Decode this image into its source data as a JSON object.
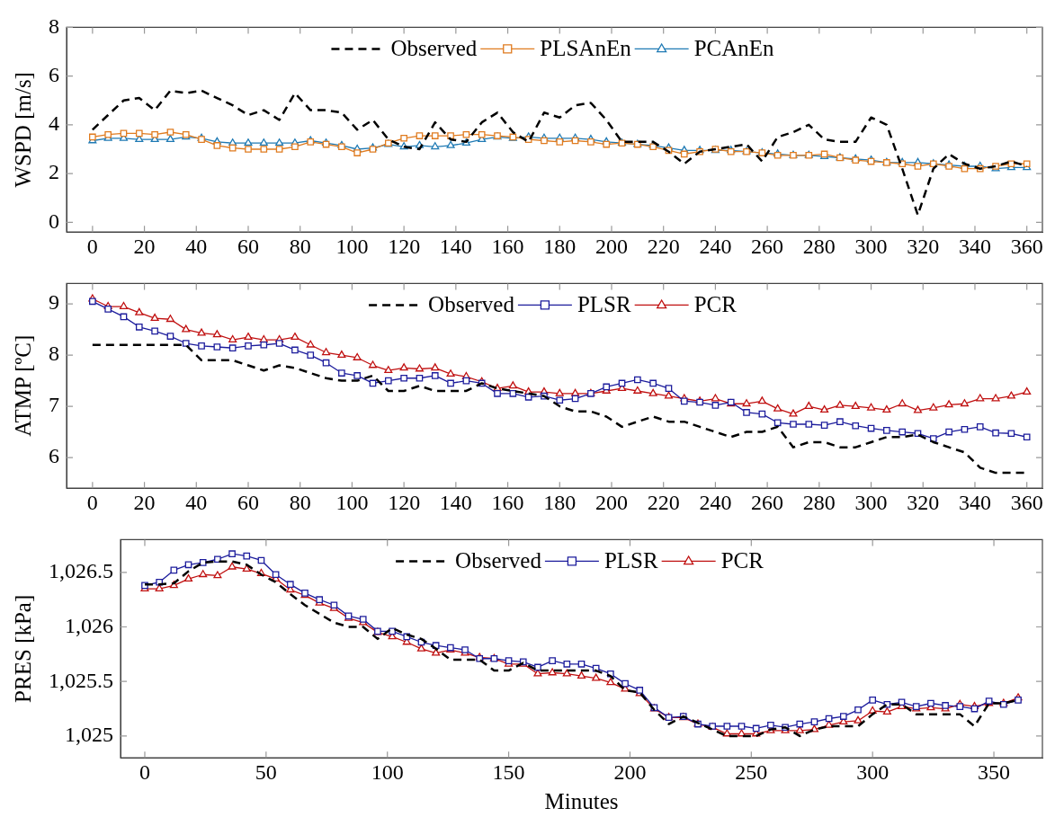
{
  "chart_data": [
    {
      "type": "line",
      "ylabel": "WSPD [m/s]",
      "xlim": [
        -10,
        366
      ],
      "ylim": [
        -0.4,
        8
      ],
      "xticks": [
        0,
        20,
        40,
        60,
        80,
        100,
        120,
        140,
        160,
        180,
        200,
        220,
        240,
        260,
        280,
        300,
        320,
        340,
        360
      ],
      "yticks": [
        0,
        2,
        4,
        6,
        8
      ],
      "legend": "top",
      "x": [
        0,
        6,
        12,
        18,
        24,
        30,
        36,
        42,
        48,
        54,
        60,
        66,
        72,
        78,
        84,
        90,
        96,
        102,
        108,
        114,
        120,
        126,
        132,
        138,
        144,
        150,
        156,
        162,
        168,
        174,
        180,
        186,
        192,
        198,
        204,
        210,
        216,
        222,
        228,
        234,
        240,
        246,
        252,
        258,
        264,
        270,
        276,
        282,
        288,
        294,
        300,
        306,
        312,
        318,
        324,
        330,
        336,
        342,
        348,
        354,
        360
      ],
      "series": [
        {
          "name": "Observed",
          "color": "#000000",
          "marker": "none",
          "line_style": "dashed",
          "values": [
            3.8,
            4.4,
            5.0,
            5.1,
            4.6,
            5.4,
            5.3,
            5.4,
            5.1,
            4.8,
            4.4,
            4.6,
            4.2,
            5.3,
            4.6,
            4.6,
            4.5,
            3.8,
            4.2,
            3.4,
            3.1,
            3.0,
            4.1,
            3.4,
            3.3,
            4.1,
            4.5,
            3.7,
            3.3,
            4.5,
            4.3,
            4.8,
            4.9,
            4.2,
            3.3,
            3.3,
            3.3,
            2.9,
            2.4,
            2.9,
            3.0,
            3.1,
            3.2,
            2.5,
            3.5,
            3.7,
            4.0,
            3.4,
            3.3,
            3.3,
            4.3,
            4.0,
            2.2,
            0.3,
            2.2,
            2.8,
            2.4,
            2.2,
            2.3,
            2.5,
            2.3
          ]
        },
        {
          "name": "PLSAnEn",
          "color": "#e07b1f",
          "marker": "square",
          "line_style": "solid",
          "values": [
            3.5,
            3.6,
            3.65,
            3.65,
            3.6,
            3.7,
            3.6,
            3.4,
            3.15,
            3.05,
            3.0,
            3.0,
            3.0,
            3.1,
            3.3,
            3.2,
            3.1,
            2.85,
            3.0,
            3.25,
            3.45,
            3.55,
            3.55,
            3.55,
            3.6,
            3.6,
            3.55,
            3.5,
            3.4,
            3.35,
            3.3,
            3.35,
            3.3,
            3.2,
            3.25,
            3.2,
            3.1,
            2.95,
            2.8,
            2.9,
            3.0,
            2.9,
            2.9,
            2.85,
            2.75,
            2.75,
            2.75,
            2.8,
            2.65,
            2.55,
            2.5,
            2.45,
            2.4,
            2.3,
            2.4,
            2.3,
            2.2,
            2.2,
            2.3,
            2.4,
            2.4
          ]
        },
        {
          "name": "PCAnEn",
          "color": "#1f7ab4",
          "marker": "triangle",
          "line_style": "solid",
          "values": [
            3.35,
            3.45,
            3.45,
            3.4,
            3.4,
            3.4,
            3.5,
            3.45,
            3.3,
            3.25,
            3.25,
            3.25,
            3.25,
            3.25,
            3.35,
            3.25,
            3.15,
            3.0,
            3.05,
            3.2,
            3.1,
            3.15,
            3.1,
            3.15,
            3.25,
            3.4,
            3.5,
            3.45,
            3.5,
            3.45,
            3.45,
            3.45,
            3.4,
            3.3,
            3.25,
            3.2,
            3.15,
            3.05,
            2.95,
            2.95,
            2.95,
            2.95,
            2.9,
            2.85,
            2.8,
            2.75,
            2.75,
            2.7,
            2.65,
            2.6,
            2.55,
            2.45,
            2.45,
            2.45,
            2.4,
            2.35,
            2.3,
            2.3,
            2.2,
            2.25,
            2.25
          ]
        }
      ]
    },
    {
      "type": "line",
      "ylabel": "ATMP [ºC]",
      "xlim": [
        -10,
        366
      ],
      "ylim": [
        5.4,
        9.4
      ],
      "xticks": [
        0,
        20,
        40,
        60,
        80,
        100,
        120,
        140,
        160,
        180,
        200,
        220,
        240,
        260,
        280,
        300,
        320,
        340,
        360
      ],
      "yticks": [
        6,
        7,
        8,
        9
      ],
      "legend": "top",
      "x": [
        0,
        6,
        12,
        18,
        24,
        30,
        36,
        42,
        48,
        54,
        60,
        66,
        72,
        78,
        84,
        90,
        96,
        102,
        108,
        114,
        120,
        126,
        132,
        138,
        144,
        150,
        156,
        162,
        168,
        174,
        180,
        186,
        192,
        198,
        204,
        210,
        216,
        222,
        228,
        234,
        240,
        246,
        252,
        258,
        264,
        270,
        276,
        282,
        288,
        294,
        300,
        306,
        312,
        318,
        324,
        330,
        336,
        342,
        348,
        354,
        360
      ],
      "series": [
        {
          "name": "Observed",
          "color": "#000000",
          "marker": "none",
          "line_style": "dashed",
          "values": [
            8.2,
            8.2,
            8.2,
            8.2,
            8.2,
            8.2,
            8.2,
            7.9,
            7.9,
            7.9,
            7.8,
            7.7,
            7.8,
            7.75,
            7.65,
            7.55,
            7.5,
            7.5,
            7.6,
            7.3,
            7.3,
            7.4,
            7.3,
            7.3,
            7.3,
            7.45,
            7.35,
            7.3,
            7.25,
            7.2,
            7.0,
            6.9,
            6.9,
            6.8,
            6.6,
            6.7,
            6.8,
            6.7,
            6.7,
            6.6,
            6.5,
            6.4,
            6.5,
            6.5,
            6.6,
            6.2,
            6.3,
            6.3,
            6.2,
            6.2,
            6.3,
            6.4,
            6.4,
            6.45,
            6.3,
            6.2,
            6.1,
            5.8,
            5.7,
            5.7,
            5.7
          ]
        },
        {
          "name": "PLSR",
          "color": "#1c1c9c",
          "marker": "square",
          "line_style": "solid",
          "values": [
            9.05,
            8.9,
            8.75,
            8.55,
            8.47,
            8.37,
            8.23,
            8.18,
            8.16,
            8.14,
            8.18,
            8.2,
            8.23,
            8.1,
            8.0,
            7.85,
            7.65,
            7.6,
            7.45,
            7.5,
            7.55,
            7.55,
            7.6,
            7.45,
            7.5,
            7.45,
            7.25,
            7.25,
            7.18,
            7.2,
            7.12,
            7.15,
            7.25,
            7.38,
            7.45,
            7.52,
            7.45,
            7.35,
            7.1,
            7.08,
            7.02,
            7.08,
            6.88,
            6.85,
            6.68,
            6.65,
            6.65,
            6.63,
            6.7,
            6.62,
            6.57,
            6.53,
            6.5,
            6.47,
            6.37,
            6.5,
            6.55,
            6.6,
            6.48,
            6.47,
            6.4
          ]
        },
        {
          "name": "PCR",
          "color": "#c01010",
          "marker": "triangle",
          "line_style": "solid",
          "values": [
            9.1,
            8.95,
            8.95,
            8.83,
            8.72,
            8.7,
            8.5,
            8.43,
            8.4,
            8.3,
            8.35,
            8.3,
            8.3,
            8.35,
            8.2,
            8.05,
            8.0,
            7.95,
            7.8,
            7.7,
            7.75,
            7.73,
            7.75,
            7.63,
            7.58,
            7.48,
            7.35,
            7.4,
            7.28,
            7.28,
            7.25,
            7.25,
            7.25,
            7.3,
            7.35,
            7.3,
            7.25,
            7.2,
            7.15,
            7.1,
            7.15,
            7.05,
            7.05,
            7.1,
            6.95,
            6.85,
            7.0,
            6.93,
            7.02,
            7.0,
            6.97,
            6.93,
            7.05,
            6.92,
            6.97,
            7.03,
            7.05,
            7.15,
            7.15,
            7.2,
            7.28
          ]
        }
      ]
    },
    {
      "type": "line",
      "ylabel": "PRES [kPa]",
      "xlabel": "Minutes",
      "xlim": [
        -10,
        370
      ],
      "ylim": [
        1024.8,
        1026.8
      ],
      "xticks": [
        0,
        50,
        100,
        150,
        200,
        250,
        300,
        350
      ],
      "yticks": [
        {
          "value": 1025,
          "label": "1,025"
        },
        {
          "value": 1025.5,
          "label": "1,025.5"
        },
        {
          "value": 1026,
          "label": "1,026"
        },
        {
          "value": 1026.5,
          "label": "1,026.5"
        }
      ],
      "legend": "top",
      "x": [
        0,
        6,
        12,
        18,
        24,
        30,
        36,
        42,
        48,
        54,
        60,
        66,
        72,
        78,
        84,
        90,
        96,
        102,
        108,
        114,
        120,
        126,
        132,
        138,
        144,
        150,
        156,
        162,
        168,
        174,
        180,
        186,
        192,
        198,
        204,
        210,
        216,
        222,
        228,
        234,
        240,
        246,
        252,
        258,
        264,
        270,
        276,
        282,
        288,
        294,
        300,
        306,
        312,
        318,
        324,
        330,
        336,
        342,
        348,
        354,
        360
      ],
      "series": [
        {
          "name": "Observed",
          "color": "#000000",
          "marker": "none",
          "line_style": "dashed",
          "values": [
            1026.39,
            1026.39,
            1026.4,
            1026.51,
            1026.59,
            1026.6,
            1026.6,
            1026.57,
            1026.48,
            1026.41,
            1026.3,
            1026.2,
            1026.12,
            1026.04,
            1026.0,
            1026.0,
            1025.89,
            1025.99,
            1025.93,
            1025.89,
            1025.8,
            1025.7,
            1025.7,
            1025.7,
            1025.6,
            1025.6,
            1025.67,
            1025.6,
            1025.6,
            1025.6,
            1025.6,
            1025.6,
            1025.55,
            1025.42,
            1025.4,
            1025.24,
            1025.11,
            1025.18,
            1025.12,
            1025.06,
            1025.0,
            1025.0,
            1025.0,
            1025.06,
            1025.08,
            1025.0,
            1025.06,
            1025.09,
            1025.09,
            1025.09,
            1025.2,
            1025.29,
            1025.29,
            1025.2,
            1025.2,
            1025.2,
            1025.2,
            1025.09,
            1025.3,
            1025.3,
            1025.33
          ]
        },
        {
          "name": "PLSR",
          "color": "#1c1c9c",
          "marker": "square",
          "line_style": "solid",
          "values": [
            1026.38,
            1026.41,
            1026.52,
            1026.57,
            1026.59,
            1026.62,
            1026.67,
            1026.65,
            1026.61,
            1026.48,
            1026.39,
            1026.31,
            1026.25,
            1026.2,
            1026.1,
            1026.07,
            1025.96,
            1025.96,
            1025.91,
            1025.86,
            1025.83,
            1025.81,
            1025.79,
            1025.71,
            1025.71,
            1025.69,
            1025.68,
            1025.63,
            1025.69,
            1025.66,
            1025.66,
            1025.62,
            1025.57,
            1025.48,
            1025.42,
            1025.26,
            1025.17,
            1025.18,
            1025.11,
            1025.09,
            1025.09,
            1025.09,
            1025.07,
            1025.1,
            1025.08,
            1025.11,
            1025.13,
            1025.16,
            1025.18,
            1025.24,
            1025.33,
            1025.29,
            1025.31,
            1025.27,
            1025.3,
            1025.28,
            1025.27,
            1025.25,
            1025.32,
            1025.29,
            1025.33
          ]
        },
        {
          "name": "PCR",
          "color": "#c01010",
          "marker": "triangle",
          "line_style": "solid",
          "values": [
            1026.35,
            1026.35,
            1026.38,
            1026.44,
            1026.48,
            1026.47,
            1026.55,
            1026.53,
            1026.49,
            1026.44,
            1026.34,
            1026.29,
            1026.22,
            1026.17,
            1026.08,
            1026.04,
            1025.95,
            1025.91,
            1025.86,
            1025.8,
            1025.76,
            1025.79,
            1025.76,
            1025.72,
            1025.71,
            1025.66,
            1025.66,
            1025.57,
            1025.58,
            1025.57,
            1025.55,
            1025.53,
            1025.49,
            1025.43,
            1025.39,
            1025.25,
            1025.17,
            1025.17,
            1025.11,
            1025.08,
            1025.02,
            1025.02,
            1025.02,
            1025.05,
            1025.05,
            1025.05,
            1025.06,
            1025.1,
            1025.13,
            1025.14,
            1025.23,
            1025.22,
            1025.27,
            1025.25,
            1025.26,
            1025.25,
            1025.29,
            1025.27,
            1025.3,
            1025.3,
            1025.35
          ]
        }
      ]
    }
  ]
}
